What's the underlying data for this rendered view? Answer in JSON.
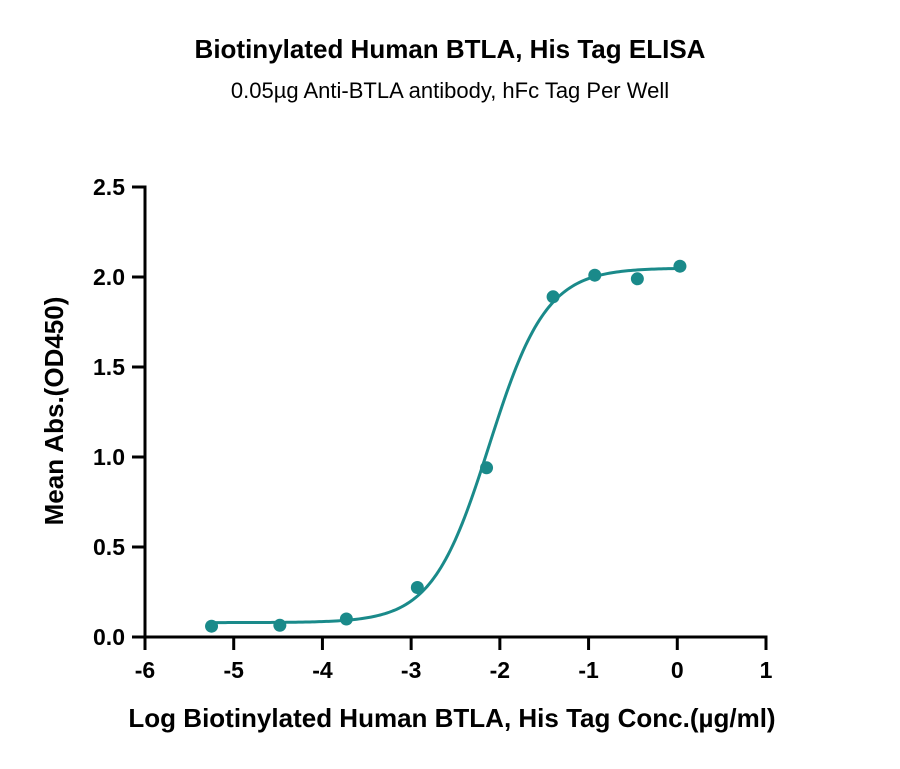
{
  "chart_data": {
    "type": "scatter",
    "title": "Biotinylated Human BTLA, His Tag ELISA",
    "subtitle": "0.05µg Anti-BTLA antibody, hFc Tag Per Well",
    "xlabel": "Log Biotinylated Human BTLA, His Tag Conc.(µg/ml)",
    "ylabel": "Mean Abs.(OD450)",
    "xlim": [
      -6,
      1
    ],
    "ylim": [
      0,
      2.5
    ],
    "x_ticks": [
      "-6",
      "-5",
      "-4",
      "-3",
      "-2",
      "-1",
      "0",
      "1"
    ],
    "y_ticks": [
      "0.0",
      "0.5",
      "1.0",
      "1.5",
      "2.0",
      "2.5"
    ],
    "grid": false,
    "series": [
      {
        "color": "#1a8a8a",
        "points": [
          {
            "x": -5.25,
            "y": 0.06
          },
          {
            "x": -4.48,
            "y": 0.065
          },
          {
            "x": -3.73,
            "y": 0.1
          },
          {
            "x": -2.93,
            "y": 0.275
          },
          {
            "x": -2.15,
            "y": 0.94
          },
          {
            "x": -1.4,
            "y": 1.89
          },
          {
            "x": -0.93,
            "y": 2.01
          },
          {
            "x": -0.45,
            "y": 1.99
          },
          {
            "x": 0.03,
            "y": 2.06
          }
        ],
        "fit": {
          "model": "4PL",
          "bottom": 0.08,
          "top": 2.05,
          "logEC50": -2.12,
          "hill": 1.35,
          "x_range": [
            -5.25,
            0.03
          ]
        }
      }
    ]
  }
}
